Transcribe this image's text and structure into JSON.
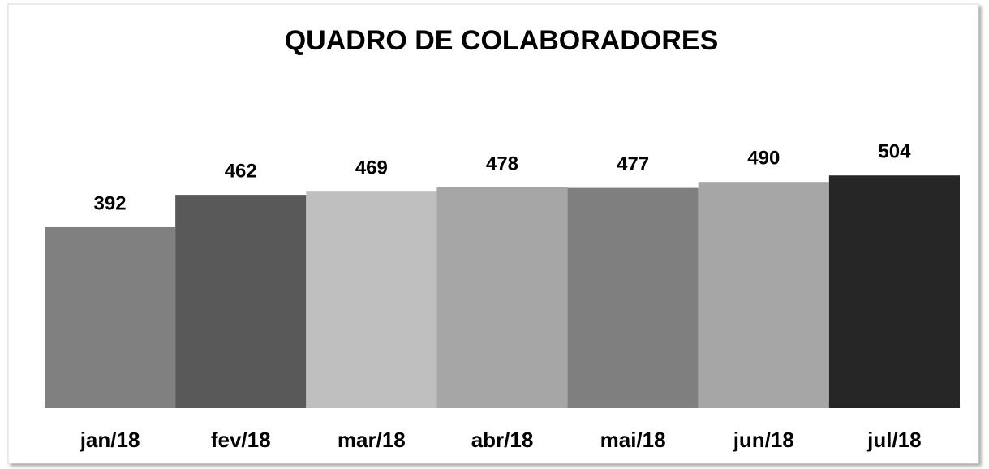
{
  "chart_data": {
    "type": "bar",
    "title": "QUADRO DE COLABORADORES",
    "categories": [
      "jan/18",
      "fev/18",
      "mar/18",
      "abr/18",
      "mai/18",
      "jun/18",
      "jul/18"
    ],
    "values": [
      392,
      462,
      469,
      478,
      477,
      490,
      504
    ],
    "colors": [
      "#808080",
      "#595959",
      "#bfbfbf",
      "#a6a6a6",
      "#7f7f7f",
      "#a6a6a6",
      "#262626"
    ]
  }
}
